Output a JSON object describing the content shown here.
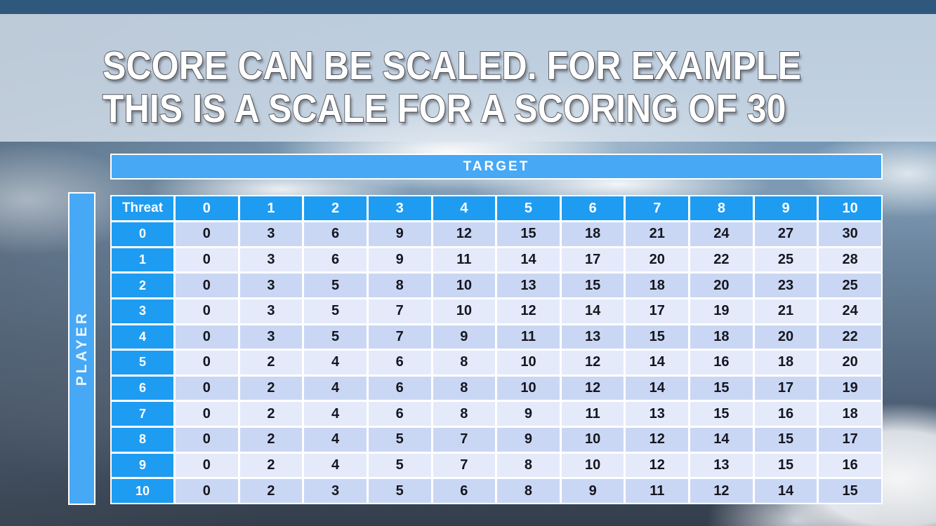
{
  "slide": {
    "title_line1": "SCORE CAN BE SCALED. FOR EXAMPLE",
    "title_line2": "THIS IS A SCALE FOR A SCORING OF 30"
  },
  "matrix": {
    "target_label": "TARGET",
    "player_label": "PLAYER",
    "corner_label": "Threat",
    "column_headers": [
      "0",
      "1",
      "2",
      "3",
      "4",
      "5",
      "6",
      "7",
      "8",
      "9",
      "10"
    ],
    "rows": [
      {
        "header": "0",
        "values": [
          0,
          3,
          6,
          9,
          12,
          15,
          18,
          21,
          24,
          27,
          30
        ]
      },
      {
        "header": "1",
        "values": [
          0,
          3,
          6,
          9,
          11,
          14,
          17,
          20,
          22,
          25,
          28
        ]
      },
      {
        "header": "2",
        "values": [
          0,
          3,
          5,
          8,
          10,
          13,
          15,
          18,
          20,
          23,
          25
        ]
      },
      {
        "header": "3",
        "values": [
          0,
          3,
          5,
          7,
          10,
          12,
          14,
          17,
          19,
          21,
          24
        ]
      },
      {
        "header": "4",
        "values": [
          0,
          3,
          5,
          7,
          9,
          11,
          13,
          15,
          18,
          20,
          22
        ]
      },
      {
        "header": "5",
        "values": [
          0,
          2,
          4,
          6,
          8,
          10,
          12,
          14,
          16,
          18,
          20
        ]
      },
      {
        "header": "6",
        "values": [
          0,
          2,
          4,
          6,
          8,
          10,
          12,
          14,
          15,
          17,
          19
        ]
      },
      {
        "header": "7",
        "values": [
          0,
          2,
          4,
          6,
          8,
          9,
          11,
          13,
          15,
          16,
          18
        ]
      },
      {
        "header": "8",
        "values": [
          0,
          2,
          4,
          5,
          7,
          9,
          10,
          12,
          14,
          15,
          17
        ]
      },
      {
        "header": "9",
        "values": [
          0,
          2,
          4,
          5,
          7,
          8,
          10,
          12,
          13,
          15,
          16
        ]
      },
      {
        "header": "10",
        "values": [
          0,
          2,
          3,
          5,
          6,
          8,
          9,
          11,
          12,
          14,
          15
        ]
      }
    ]
  },
  "colors": {
    "header_blue": "#1e9cf2",
    "bar_blue": "#47a8f5",
    "top_strip_blue": "#2e597c",
    "row_dark": "#cad7f4",
    "row_light": "#e4eafa",
    "title_text": "#ffffff",
    "title_outline": "#56565a"
  }
}
